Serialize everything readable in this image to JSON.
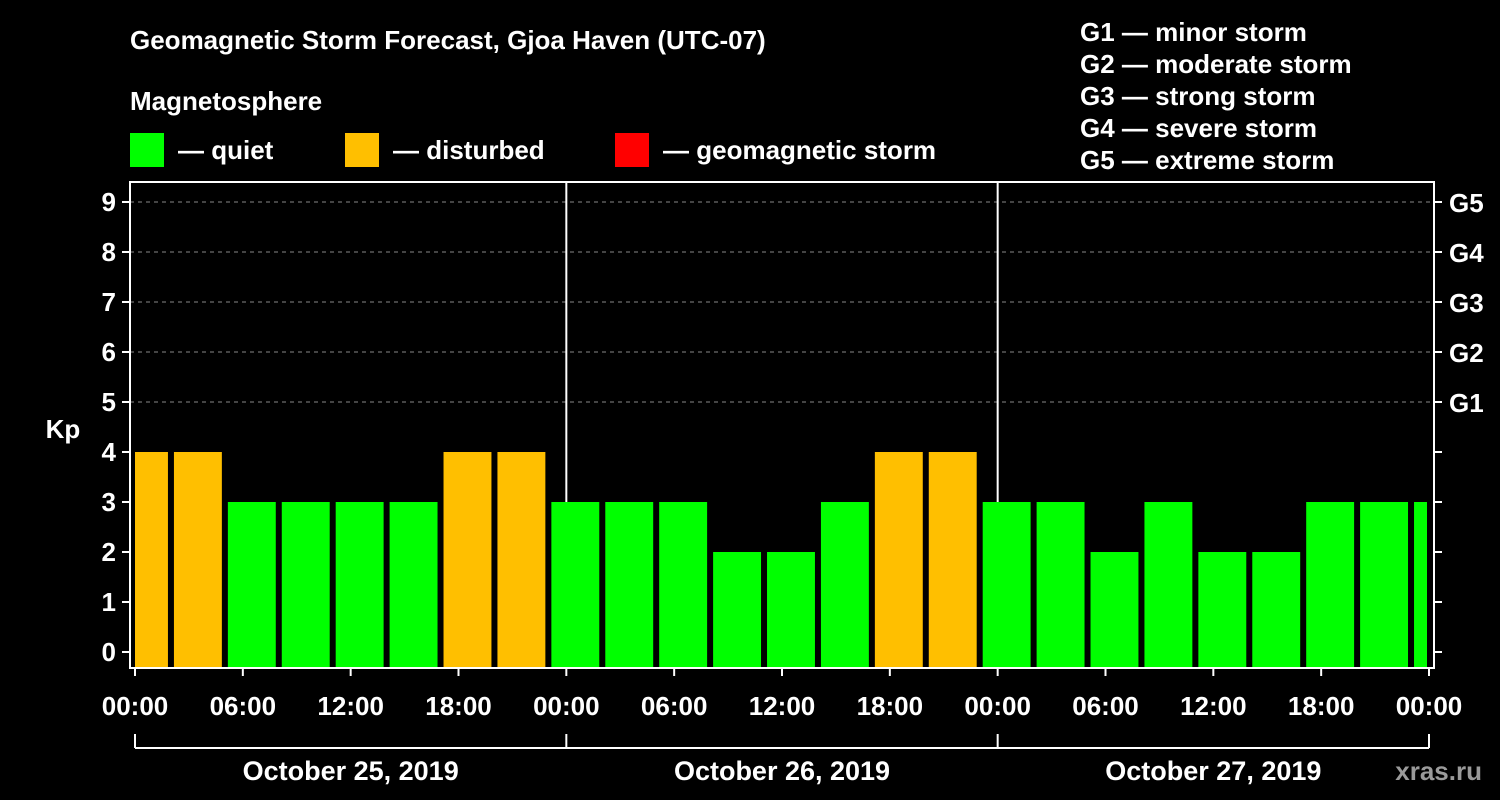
{
  "title": "Geomagnetic Storm Forecast, Gjoa Haven (UTC-07)",
  "subtitle": "Magnetosphere",
  "legend": [
    {
      "label": "— quiet",
      "color": "#00ff00"
    },
    {
      "label": "— disturbed",
      "color": "#ffbf00"
    },
    {
      "label": "— geomagnetic storm",
      "color": "#ff0000"
    }
  ],
  "storm_scale": [
    "G1 — minor storm",
    "G2 — moderate storm",
    "G3 — strong storm",
    "G4 — severe storm",
    "G5 — extreme storm"
  ],
  "watermark": "xras.ru",
  "chart_data": {
    "type": "bar",
    "ylabel": "Kp",
    "ylim": [
      0,
      9
    ],
    "y_ticks": [
      "0",
      "1",
      "2",
      "3",
      "4",
      "5",
      "6",
      "7",
      "8",
      "9"
    ],
    "right_ticks": [
      {
        "kp": 5,
        "label": "G1"
      },
      {
        "kp": 6,
        "label": "G2"
      },
      {
        "kp": 7,
        "label": "G3"
      },
      {
        "kp": 8,
        "label": "G4"
      },
      {
        "kp": 9,
        "label": "G5"
      }
    ],
    "x_ticks": [
      "00:00",
      "06:00",
      "12:00",
      "18:00",
      "00:00",
      "06:00",
      "12:00",
      "18:00",
      "00:00",
      "06:00",
      "12:00",
      "18:00",
      "00:00"
    ],
    "days": [
      "October 25, 2019",
      "October 26, 2019",
      "October 27, 2019"
    ],
    "grid": "dashed horizontal at Kp 5-9",
    "bars": [
      {
        "start_hour": 0,
        "end_hour": 2,
        "kp": 4,
        "status": "disturbed"
      },
      {
        "start_hour": 2,
        "end_hour": 5,
        "kp": 4,
        "status": "disturbed"
      },
      {
        "start_hour": 5,
        "end_hour": 8,
        "kp": 3,
        "status": "quiet"
      },
      {
        "start_hour": 8,
        "end_hour": 11,
        "kp": 3,
        "status": "quiet"
      },
      {
        "start_hour": 11,
        "end_hour": 14,
        "kp": 3,
        "status": "quiet"
      },
      {
        "start_hour": 14,
        "end_hour": 17,
        "kp": 3,
        "status": "quiet"
      },
      {
        "start_hour": 17,
        "end_hour": 20,
        "kp": 4,
        "status": "disturbed"
      },
      {
        "start_hour": 20,
        "end_hour": 23,
        "kp": 4,
        "status": "disturbed"
      },
      {
        "start_hour": 23,
        "end_hour": 26,
        "kp": 3,
        "status": "quiet"
      },
      {
        "start_hour": 26,
        "end_hour": 29,
        "kp": 3,
        "status": "quiet"
      },
      {
        "start_hour": 29,
        "end_hour": 32,
        "kp": 3,
        "status": "quiet"
      },
      {
        "start_hour": 32,
        "end_hour": 35,
        "kp": 2,
        "status": "quiet"
      },
      {
        "start_hour": 35,
        "end_hour": 38,
        "kp": 2,
        "status": "quiet"
      },
      {
        "start_hour": 38,
        "end_hour": 41,
        "kp": 3,
        "status": "quiet"
      },
      {
        "start_hour": 41,
        "end_hour": 44,
        "kp": 4,
        "status": "disturbed"
      },
      {
        "start_hour": 44,
        "end_hour": 47,
        "kp": 4,
        "status": "disturbed"
      },
      {
        "start_hour": 47,
        "end_hour": 50,
        "kp": 3,
        "status": "quiet"
      },
      {
        "start_hour": 50,
        "end_hour": 53,
        "kp": 3,
        "status": "quiet"
      },
      {
        "start_hour": 53,
        "end_hour": 56,
        "kp": 2,
        "status": "quiet"
      },
      {
        "start_hour": 56,
        "end_hour": 59,
        "kp": 3,
        "status": "quiet"
      },
      {
        "start_hour": 59,
        "end_hour": 62,
        "kp": 2,
        "status": "quiet"
      },
      {
        "start_hour": 62,
        "end_hour": 65,
        "kp": 2,
        "status": "quiet"
      },
      {
        "start_hour": 65,
        "end_hour": 68,
        "kp": 3,
        "status": "quiet"
      },
      {
        "start_hour": 68,
        "end_hour": 71,
        "kp": 3,
        "status": "quiet"
      },
      {
        "start_hour": 71,
        "end_hour": 72,
        "kp": 3,
        "status": "quiet"
      }
    ]
  }
}
